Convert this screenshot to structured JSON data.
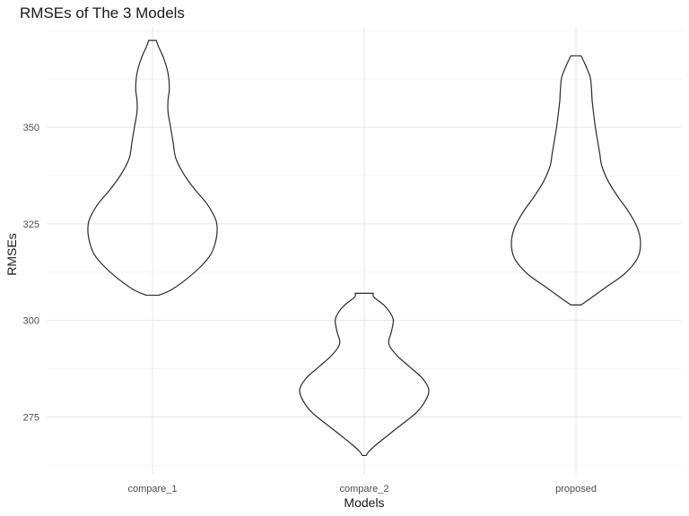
{
  "chart_data": {
    "type": "violin",
    "title": "RMSEs of The 3 Models",
    "xlabel": "Models",
    "ylabel": "RMSEs",
    "categories": [
      "compare_1",
      "compare_2",
      "proposed"
    ],
    "ylim": [
      260,
      376
    ],
    "yticks": [
      275,
      300,
      325,
      350
    ],
    "grid": true,
    "violins": [
      {
        "category": "compare_1",
        "min": 306.5,
        "max": 372.5,
        "density": [
          [
            306.5,
            0.1
          ],
          [
            308,
            0.3
          ],
          [
            311,
            0.55
          ],
          [
            314,
            0.75
          ],
          [
            317,
            0.9
          ],
          [
            320,
            0.97
          ],
          [
            323,
            1.0
          ],
          [
            326,
            0.98
          ],
          [
            330,
            0.85
          ],
          [
            334,
            0.65
          ],
          [
            338,
            0.48
          ],
          [
            342,
            0.36
          ],
          [
            346,
            0.32
          ],
          [
            350,
            0.28
          ],
          [
            354,
            0.24
          ],
          [
            357,
            0.24
          ],
          [
            360,
            0.26
          ],
          [
            364,
            0.24
          ],
          [
            368,
            0.17
          ],
          [
            371,
            0.09
          ],
          [
            372.5,
            0.06
          ]
        ]
      },
      {
        "category": "compare_2",
        "min": 265,
        "max": 307,
        "density": [
          [
            265,
            0.03
          ],
          [
            266,
            0.07
          ],
          [
            268,
            0.2
          ],
          [
            272,
            0.5
          ],
          [
            276,
            0.8
          ],
          [
            279,
            0.94
          ],
          [
            282,
            1.0
          ],
          [
            285,
            0.9
          ],
          [
            288,
            0.7
          ],
          [
            291,
            0.5
          ],
          [
            294,
            0.38
          ],
          [
            297,
            0.42
          ],
          [
            300,
            0.45
          ],
          [
            302,
            0.4
          ],
          [
            304,
            0.3
          ],
          [
            306,
            0.15
          ],
          [
            307,
            0.14
          ]
        ]
      },
      {
        "category": "proposed",
        "min": 304,
        "max": 368.5,
        "density": [
          [
            304,
            0.08
          ],
          [
            306,
            0.25
          ],
          [
            309,
            0.5
          ],
          [
            312,
            0.75
          ],
          [
            316,
            0.95
          ],
          [
            320,
            1.0
          ],
          [
            324,
            0.95
          ],
          [
            328,
            0.82
          ],
          [
            332,
            0.65
          ],
          [
            336,
            0.5
          ],
          [
            340,
            0.4
          ],
          [
            343,
            0.37
          ],
          [
            346,
            0.34
          ],
          [
            350,
            0.3
          ],
          [
            354,
            0.27
          ],
          [
            357,
            0.25
          ],
          [
            360,
            0.24
          ],
          [
            363,
            0.22
          ],
          [
            366,
            0.15
          ],
          [
            368.5,
            0.08
          ]
        ]
      }
    ]
  }
}
